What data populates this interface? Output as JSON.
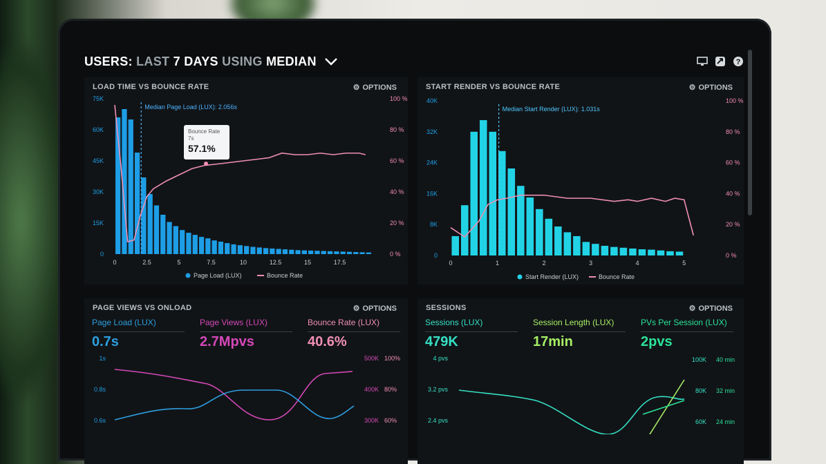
{
  "header": {
    "prefix": "USERS:",
    "range": "LAST",
    "days": "7 DAYS",
    "using": "USING",
    "stat": "MEDIAN",
    "icons": [
      "monitor-icon",
      "share-icon",
      "help-icon"
    ]
  },
  "options_label": "OPTIONS",
  "panel1": {
    "title": "LOAD TIME VS BOUNCE RATE",
    "median_label": "Median Page Load (LUX): 2.056s",
    "tooltip": {
      "title": "Bounce Rate",
      "sub": "7s",
      "value": "57.1%"
    },
    "legend": [
      "Page Load (LUX)",
      "Bounce Rate"
    ]
  },
  "panel2": {
    "title": "START RENDER VS BOUNCE RATE",
    "median_label": "Median Start Render (LUX): 1.031s",
    "legend": [
      "Start Render (LUX)",
      "Bounce Rate"
    ]
  },
  "panel3": {
    "title": "PAGE VIEWS VS ONLOAD",
    "metrics": [
      {
        "label": "Page Load (LUX)",
        "value": "0.7s",
        "color": "#2d9fe0"
      },
      {
        "label": "Page Views (LUX)",
        "value": "2.7Mpvs",
        "color": "#d548b8"
      },
      {
        "label": "Bounce Rate (LUX)",
        "value": "40.6%",
        "color": "#f08fb4"
      }
    ],
    "left_ticks": [
      "1s",
      "0.8s",
      "0.6s"
    ],
    "right_ticks_a": [
      "500K",
      "400K",
      "300K"
    ],
    "right_ticks_b": [
      "100%",
      "80%",
      "60%"
    ]
  },
  "panel4": {
    "title": "SESSIONS",
    "metrics": [
      {
        "label": "Sessions (LUX)",
        "value": "479K",
        "color": "#35e0c4"
      },
      {
        "label": "Session Length (LUX)",
        "value": "17min",
        "color": "#a7ef66"
      },
      {
        "label": "PVs Per Session (LUX)",
        "value": "2pvs",
        "color": "#2be39a"
      }
    ],
    "left_ticks": [
      "4 pvs",
      "3.2 pvs",
      "2.4 pvs"
    ],
    "right_ticks_a": [
      "100K",
      "80K",
      "60K"
    ],
    "right_ticks_b": [
      "40 min",
      "32 min",
      "24 min"
    ]
  },
  "chart_data": [
    {
      "type": "bar",
      "title": "LOAD TIME VS BOUNCE RATE",
      "x_ticks": [
        "0",
        "2.5",
        "5",
        "7.5",
        "10",
        "12.5",
        "15",
        "17.5"
      ],
      "y_ticks_left": [
        "75K",
        "60K",
        "45K",
        "30K",
        "15K",
        "0"
      ],
      "y_ticks_right": [
        "100 %",
        "80 %",
        "60 %",
        "40 %",
        "20 %",
        "0 %"
      ],
      "ylim": [
        0,
        75000
      ],
      "x": [
        0.25,
        0.75,
        1.25,
        1.75,
        2.25,
        2.75,
        3.25,
        3.75,
        4.25,
        4.75,
        5.25,
        5.75,
        6.25,
        6.75,
        7.25,
        7.75,
        8.25,
        8.75,
        9.25,
        9.75,
        10.25,
        10.75,
        11.25,
        11.75,
        12.25,
        12.75,
        13.25,
        13.75,
        14.25,
        14.75,
        15.25,
        15.75,
        16.25,
        16.75,
        17.25,
        17.75,
        18.25,
        18.75,
        19.25,
        19.75
      ],
      "series": [
        {
          "name": "Page Load (LUX)",
          "values": [
            66000,
            70000,
            65000,
            49000,
            37000,
            29000,
            23500,
            19000,
            15500,
            13500,
            11600,
            10300,
            9300,
            8300,
            7600,
            6600,
            6000,
            5300,
            4700,
            4300,
            3900,
            3500,
            3200,
            2900,
            2700,
            2500,
            2300,
            2100,
            1900,
            1800,
            1700,
            1600,
            1500,
            1400,
            1300,
            1200,
            1100,
            1000,
            900,
            800
          ]
        },
        {
          "name": "Bounce Rate",
          "x": [
            0,
            0.5,
            1,
            1.5,
            2,
            2.5,
            3,
            4,
            5,
            6,
            7,
            8,
            9,
            10,
            11,
            12,
            13,
            14,
            15,
            16,
            17,
            18,
            19,
            19.5
          ],
          "values": [
            96,
            55,
            8,
            9,
            25,
            37,
            42,
            47,
            51,
            55,
            57.1,
            58,
            59,
            60,
            61,
            62,
            65,
            64,
            64,
            65,
            64,
            65,
            65,
            64
          ]
        }
      ],
      "median_x": 2.056
    },
    {
      "type": "bar",
      "title": "START RENDER VS BOUNCE RATE",
      "x_ticks": [
        "0",
        "1",
        "2",
        "3",
        "4",
        "5"
      ],
      "y_ticks_left": [
        "40K",
        "32K",
        "24K",
        "16K",
        "8K",
        "0"
      ],
      "y_ticks_right": [
        "100 %",
        "80 %",
        "60 %",
        "40 %",
        "20 %",
        "0 %"
      ],
      "ylim": [
        0,
        40000
      ],
      "x": [
        0.1,
        0.3,
        0.5,
        0.7,
        0.9,
        1.1,
        1.3,
        1.5,
        1.7,
        1.9,
        2.1,
        2.3,
        2.5,
        2.7,
        2.9,
        3.1,
        3.3,
        3.5,
        3.7,
        3.9,
        4.1,
        4.3,
        4.5,
        4.7,
        4.9
      ],
      "series": [
        {
          "name": "Start Render (LUX)",
          "values": [
            5000,
            13000,
            32000,
            35000,
            32000,
            27000,
            22500,
            18000,
            15000,
            12000,
            9500,
            7500,
            6000,
            5000,
            3500,
            3000,
            2500,
            2200,
            2000,
            1800,
            1600,
            1500,
            1300,
            1100,
            1000
          ]
        },
        {
          "name": "Bounce Rate",
          "x": [
            0,
            0.3,
            0.6,
            0.8,
            1,
            1.2,
            1.5,
            2,
            2.5,
            3,
            3.5,
            3.8,
            4,
            4.3,
            4.6,
            4.8,
            5,
            5.2
          ],
          "values": [
            18,
            12,
            22,
            33,
            36,
            37,
            39,
            39,
            37,
            37,
            35,
            36,
            35,
            37,
            35,
            37,
            36,
            13
          ]
        }
      ],
      "median_x": 1.031
    }
  ]
}
